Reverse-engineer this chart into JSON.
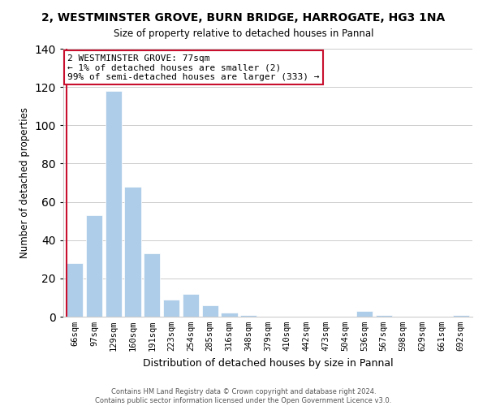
{
  "title": "2, WESTMINSTER GROVE, BURN BRIDGE, HARROGATE, HG3 1NA",
  "subtitle": "Size of property relative to detached houses in Pannal",
  "xlabel": "Distribution of detached houses by size in Pannal",
  "ylabel": "Number of detached properties",
  "bar_labels": [
    "66sqm",
    "97sqm",
    "129sqm",
    "160sqm",
    "191sqm",
    "223sqm",
    "254sqm",
    "285sqm",
    "316sqm",
    "348sqm",
    "379sqm",
    "410sqm",
    "442sqm",
    "473sqm",
    "504sqm",
    "536sqm",
    "567sqm",
    "598sqm",
    "629sqm",
    "661sqm",
    "692sqm"
  ],
  "bar_values": [
    28,
    53,
    118,
    68,
    33,
    9,
    12,
    6,
    2,
    1,
    0,
    0,
    0,
    0,
    0,
    3,
    1,
    0,
    0,
    0,
    1
  ],
  "bar_color": "#aecde8",
  "highlight_color": "#c8102e",
  "ylim": [
    0,
    140
  ],
  "yticks": [
    0,
    20,
    40,
    60,
    80,
    100,
    120,
    140
  ],
  "annotation_title": "2 WESTMINSTER GROVE: 77sqm",
  "annotation_line1": "← 1% of detached houses are smaller (2)",
  "annotation_line2": "99% of semi-detached houses are larger (333) →",
  "footer_line1": "Contains HM Land Registry data © Crown copyright and database right 2024.",
  "footer_line2": "Contains public sector information licensed under the Open Government Licence v3.0."
}
